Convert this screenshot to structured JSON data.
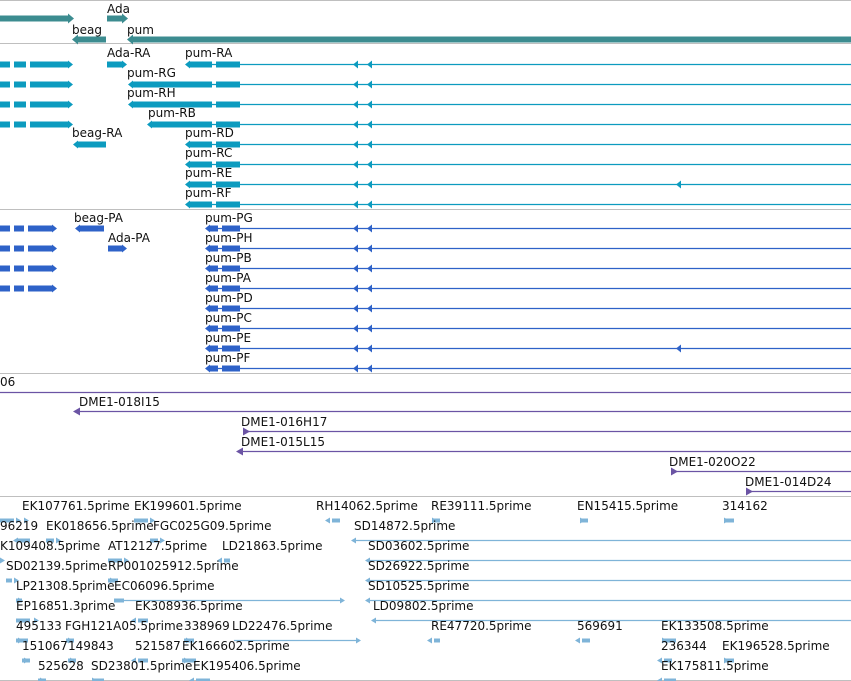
{
  "colors": {
    "genes": "#3c8c90",
    "transcripts": "#0c9bbf",
    "proteins": "#2e62c8",
    "clones": "#6b54a4",
    "ests": "#7fb4d8",
    "separator": "#bfbfbf",
    "label": "#111111"
  },
  "tracks": {
    "genes": {
      "features": [
        {
          "label": "",
          "strand": "+"
        },
        {
          "label": "Ada",
          "strand": "+"
        },
        {
          "label": "beag",
          "strand": "-"
        },
        {
          "label": "pum",
          "strand": "-"
        }
      ]
    },
    "transcripts": {
      "features": [
        {
          "label": "Ada-RA"
        },
        {
          "label": "pum-RA"
        },
        {
          "label": "pum-RG"
        },
        {
          "label": "pum-RH"
        },
        {
          "label": "pum-RB"
        },
        {
          "label": "beag-RA"
        },
        {
          "label": "pum-RD"
        },
        {
          "label": "pum-RC"
        },
        {
          "label": "pum-RE"
        },
        {
          "label": "pum-RF"
        }
      ]
    },
    "proteins": {
      "features": [
        {
          "label": "beag-PA"
        },
        {
          "label": "pum-PG"
        },
        {
          "label": "Ada-PA"
        },
        {
          "label": "pum-PH"
        },
        {
          "label": "pum-PB"
        },
        {
          "label": "pum-PA"
        },
        {
          "label": "pum-PD"
        },
        {
          "label": "pum-PC"
        },
        {
          "label": "pum-PE"
        },
        {
          "label": "pum-PF"
        }
      ]
    },
    "clones": {
      "features": [
        {
          "label": "06"
        },
        {
          "label": "DME1-018I15"
        },
        {
          "label": "DME1-016H17"
        },
        {
          "label": "DME1-015L15"
        },
        {
          "label": "DME1-020O22"
        },
        {
          "label": "DME1-014D24"
        }
      ]
    },
    "ests": {
      "features": [
        {
          "label": "EK107761.5prime"
        },
        {
          "label": "EK199601.5prime"
        },
        {
          "label": "RH14062.5prime"
        },
        {
          "label": "RE39111.5prime"
        },
        {
          "label": "EN15415.5prime"
        },
        {
          "label": "314162"
        },
        {
          "label": "96219"
        },
        {
          "label": "EK018656.5prime"
        },
        {
          "label": "FGC025G09.5prime"
        },
        {
          "label": "SD14872.5prime"
        },
        {
          "label": "K109408.5prime"
        },
        {
          "label": "AT12127.5prime"
        },
        {
          "label": "LD21863.5prime"
        },
        {
          "label": "SD03602.5prime"
        },
        {
          "label": "SD02139.5prime"
        },
        {
          "label": "RP001025912.5prime"
        },
        {
          "label": "SD26922.5prime"
        },
        {
          "label": "LP21308.5prime"
        },
        {
          "label": "EC06096.5prime"
        },
        {
          "label": "SD10525.5prime"
        },
        {
          "label": "EP16851.3prime"
        },
        {
          "label": "EK308936.5prime"
        },
        {
          "label": "LD09802.5prime"
        },
        {
          "label": "495133"
        },
        {
          "label": "FGH121A05.5prime"
        },
        {
          "label": "338969"
        },
        {
          "label": "LD22476.5prime"
        },
        {
          "label": "RE47720.5prime"
        },
        {
          "label": "569691"
        },
        {
          "label": "EK133508.5prime"
        },
        {
          "label": "151067"
        },
        {
          "label": "149843"
        },
        {
          "label": "521587"
        },
        {
          "label": "EK166602.5prime"
        },
        {
          "label": "236344"
        },
        {
          "label": "EK196528.5prime"
        },
        {
          "label": "525628"
        },
        {
          "label": "SD23801.5prime"
        },
        {
          "label": "EK195406.5prime"
        },
        {
          "label": "EK175811.5prime"
        }
      ]
    }
  }
}
